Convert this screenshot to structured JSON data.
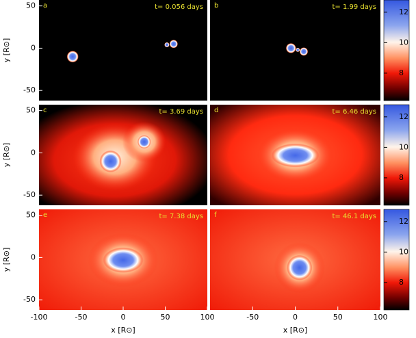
{
  "chart_data": [
    {
      "type": "image",
      "panel": "a",
      "annotation": "t= 0.056 days",
      "xlim": [
        -100,
        100
      ],
      "ylim": [
        -62,
        57
      ],
      "yticks": [
        -50,
        0,
        50
      ],
      "ylabel": "y [R⊙]"
    },
    {
      "type": "image",
      "panel": "b",
      "annotation": "t= 1.99 days",
      "xlim": [
        -100,
        100
      ],
      "ylim": [
        -62,
        57
      ],
      "colorbar": {
        "clim": [
          6.2,
          12.8
        ],
        "ticks": [
          8,
          10,
          12
        ]
      }
    },
    {
      "type": "image",
      "panel": "c",
      "annotation": "t= 3.69 days",
      "xlim": [
        -100,
        100
      ],
      "ylim": [
        -62,
        57
      ],
      "yticks": [
        -50,
        0,
        50
      ],
      "ylabel": "y [R⊙]"
    },
    {
      "type": "image",
      "panel": "d",
      "annotation": "t= 6.46 days",
      "xlim": [
        -100,
        100
      ],
      "ylim": [
        -62,
        57
      ],
      "colorbar": {
        "clim": [
          6.2,
          12.8
        ],
        "ticks": [
          8,
          10,
          12
        ]
      }
    },
    {
      "type": "image",
      "panel": "e",
      "annotation": "t= 7.38 days",
      "xlim": [
        -100,
        100
      ],
      "ylim": [
        -62,
        57
      ],
      "yticks": [
        -50,
        0,
        50
      ],
      "ylabel": "y [R⊙]",
      "xticks": [
        -100,
        -50,
        0,
        50,
        100
      ],
      "xlabel": "x [R⊙]"
    },
    {
      "type": "image",
      "panel": "f",
      "annotation": "t= 46.1 days",
      "xlim": [
        -100,
        100
      ],
      "ylim": [
        -62,
        57
      ],
      "xticks": [
        -50,
        0,
        50,
        100
      ],
      "xlabel": "x [R⊙]",
      "colorbar": {
        "clim": [
          6.2,
          12.8
        ],
        "ticks": [
          8,
          10,
          12
        ]
      }
    }
  ]
}
